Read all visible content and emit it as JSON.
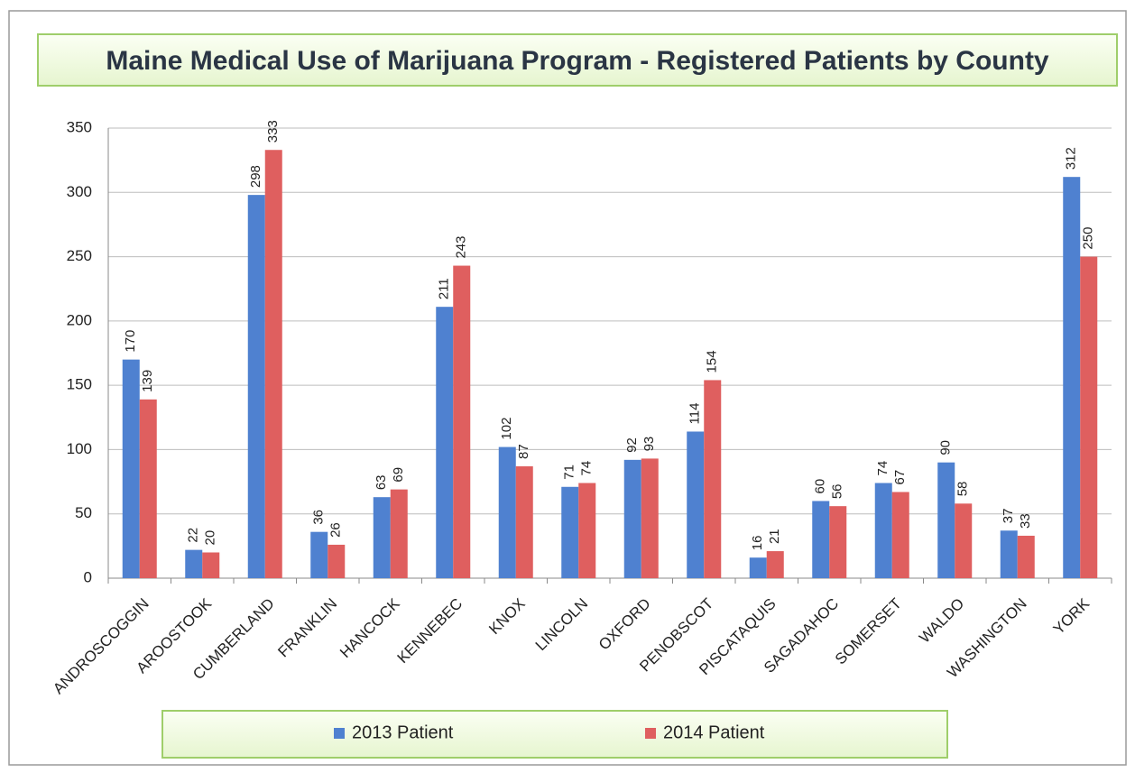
{
  "chart_data": {
    "type": "bar",
    "title": "Maine Medical Use of Marijuana Program - Registered Patients by County",
    "categories": [
      "ANDROSCOGGIN",
      "AROOSTOOK",
      "CUMBERLAND",
      "FRANKLIN",
      "HANCOCK",
      "KENNEBEC",
      "KNOX",
      "LINCOLN",
      "OXFORD",
      "PENOBSCOT",
      "PISCATAQUIS",
      "SAGADAHOC",
      "SOMERSET",
      "WALDO",
      "WASHINGTON",
      "YORK"
    ],
    "series": [
      {
        "name": "2013 Patient",
        "color": "#4f81d0",
        "values": [
          170,
          22,
          298,
          36,
          63,
          211,
          102,
          71,
          92,
          114,
          16,
          60,
          74,
          90,
          37,
          312
        ]
      },
      {
        "name": "2014 Patient",
        "color": "#df5f5f",
        "values": [
          139,
          20,
          333,
          26,
          69,
          243,
          87,
          74,
          93,
          154,
          21,
          56,
          67,
          58,
          33,
          250
        ]
      }
    ],
    "ylim": [
      0,
      350
    ],
    "yticks": [
      0,
      50,
      100,
      150,
      200,
      250,
      300,
      350
    ],
    "grid": true,
    "legend": "bottom"
  }
}
